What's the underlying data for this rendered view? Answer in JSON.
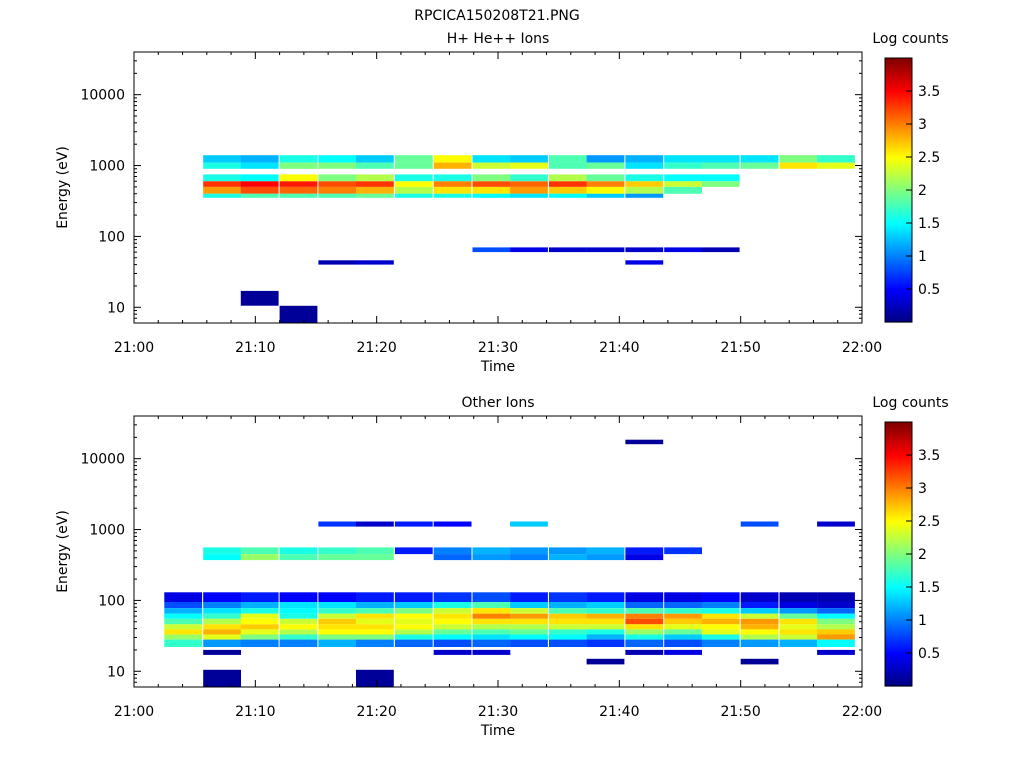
{
  "figure": {
    "title": "RPCICA150208T21.PNG"
  },
  "colormap": [
    "#00007f",
    "#0000ff",
    "#007fff",
    "#00ffff",
    "#7fff7f",
    "#ffff00",
    "#ff7f00",
    "#ff0000",
    "#7f0000"
  ],
  "chart_data": [
    {
      "type": "heatmap",
      "title": "H+ He++ Ions",
      "xlabel": "Time",
      "ylabel": "Energy (eV)",
      "y_scale": "log",
      "xlim": [
        "21:00",
        "22:00"
      ],
      "ylim": [
        6,
        40000
      ],
      "x_ticks": [
        "21:00",
        "21:10",
        "21:20",
        "21:30",
        "21:40",
        "21:50",
        "22:00"
      ],
      "y_ticks": [
        "10",
        "100",
        "1000",
        "10000"
      ],
      "colorbar": {
        "label": "Log counts",
        "range": [
          0,
          4
        ],
        "ticks": [
          "0.5",
          "1",
          "1.5",
          "2",
          "2.5",
          "3",
          "3.5"
        ]
      },
      "time_bins_start_min": [
        2.5,
        5.7,
        8.8,
        12.0,
        15.2,
        18.3,
        21.5,
        24.7,
        27.9,
        31.0,
        34.2,
        37.3,
        40.5,
        43.7,
        46.8,
        50.0,
        53.2,
        56.3
      ],
      "bin_width_min": 3.2,
      "bands": [
        {
          "e": [
            1100,
            1400
          ],
          "values": [
            null,
            1.3,
            1.2,
            1.6,
            1.5,
            1.3,
            1.9,
            2.5,
            1.4,
            1.3,
            1.8,
            1.1,
            1.2,
            1.4,
            1.4,
            1.4,
            2.0,
            1.7
          ]
        },
        {
          "e": [
            900,
            1100
          ],
          "values": [
            null,
            1.6,
            1.4,
            2.0,
            2.0,
            1.8,
            1.9,
            2.8,
            2.3,
            2.4,
            1.8,
            1.9,
            1.4,
            1.7,
            1.8,
            1.9,
            2.6,
            2.4
          ]
        },
        {
          "e": [
            600,
            750
          ],
          "values": [
            null,
            1.6,
            1.5,
            2.5,
            2.0,
            2.2,
            1.6,
            1.6,
            2.0,
            1.7,
            2.2,
            1.9,
            1.6,
            1.5,
            1.5,
            null,
            null,
            null
          ]
        },
        {
          "e": [
            500,
            600
          ],
          "values": [
            null,
            3.3,
            3.5,
            3.4,
            3.2,
            3.3,
            2.5,
            3.0,
            3.2,
            3.1,
            3.3,
            3.0,
            2.7,
            2.3,
            2.0,
            null,
            null,
            null
          ]
        },
        {
          "e": [
            400,
            500
          ],
          "values": [
            null,
            2.9,
            3.2,
            3.1,
            3.0,
            2.8,
            2.2,
            2.6,
            2.6,
            2.9,
            2.7,
            2.5,
            2.2,
            1.8,
            null,
            null,
            null,
            null
          ]
        },
        {
          "e": [
            350,
            400
          ],
          "values": [
            null,
            1.6,
            1.8,
            1.8,
            1.8,
            1.9,
            1.6,
            1.6,
            1.5,
            1.4,
            1.5,
            1.3,
            1.1,
            null,
            null,
            null,
            null,
            null
          ]
        },
        {
          "e": [
            40,
            46
          ],
          "values": [
            null,
            null,
            null,
            null,
            0.2,
            0.3,
            null,
            null,
            null,
            null,
            null,
            null,
            0.4,
            null,
            null,
            null,
            null,
            null
          ]
        },
        {
          "e": [
            60,
            70
          ],
          "values": [
            null,
            null,
            null,
            null,
            null,
            null,
            null,
            null,
            0.8,
            0.4,
            0.3,
            0.3,
            0.3,
            0.4,
            0.2,
            null,
            null,
            null
          ]
        },
        {
          "e": [
            10.5,
            17
          ],
          "values": [
            null,
            null,
            0.1,
            null,
            null,
            null,
            null,
            null,
            null,
            null,
            null,
            null,
            null,
            null,
            null,
            null,
            null,
            null
          ]
        },
        {
          "e": [
            6,
            10.5
          ],
          "values": [
            null,
            null,
            null,
            0.1,
            null,
            null,
            null,
            null,
            null,
            null,
            null,
            null,
            null,
            null,
            null,
            null,
            null,
            null
          ]
        }
      ]
    },
    {
      "type": "heatmap",
      "title": "Other Ions",
      "xlabel": "Time",
      "ylabel": "Energy (eV)",
      "y_scale": "log",
      "xlim": [
        "21:00",
        "22:00"
      ],
      "ylim": [
        6,
        40000
      ],
      "x_ticks": [
        "21:00",
        "21:10",
        "21:20",
        "21:30",
        "21:40",
        "21:50",
        "22:00"
      ],
      "y_ticks": [
        "10",
        "100",
        "1000",
        "10000"
      ],
      "colorbar": {
        "label": "Log counts",
        "range": [
          0,
          4
        ],
        "ticks": [
          "0.5",
          "1",
          "1.5",
          "2",
          "2.5",
          "3",
          "3.5"
        ]
      },
      "time_bins_start_min": [
        2.5,
        5.7,
        8.8,
        12.0,
        15.2,
        18.3,
        21.5,
        24.7,
        27.9,
        31.0,
        34.2,
        37.3,
        40.5,
        43.7,
        46.8,
        50.0,
        53.2,
        56.3
      ],
      "bin_width_min": 3.2,
      "bands": [
        {
          "e": [
            1100,
            1300
          ],
          "values": [
            null,
            null,
            null,
            null,
            0.7,
            0.3,
            0.6,
            0.5,
            null,
            1.3,
            null,
            null,
            null,
            null,
            null,
            0.8,
            null,
            0.3
          ]
        },
        {
          "e": [
            450,
            560
          ],
          "values": [
            null,
            1.6,
            1.8,
            1.6,
            1.7,
            1.8,
            0.6,
            1.0,
            1.2,
            1.1,
            1.1,
            1.2,
            0.6,
            0.7,
            null,
            null,
            null,
            null
          ]
        },
        {
          "e": [
            370,
            450
          ],
          "values": [
            null,
            1.5,
            2.1,
            1.8,
            1.9,
            1.9,
            null,
            0.9,
            1.1,
            1.0,
            1.2,
            1.1,
            0.4,
            null,
            null,
            null,
            null,
            null
          ]
        },
        {
          "e": [
            95,
            130
          ],
          "values": [
            0.4,
            0.5,
            0.6,
            0.5,
            0.5,
            0.6,
            0.6,
            0.7,
            0.8,
            0.6,
            0.7,
            0.6,
            0.4,
            0.4,
            0.5,
            0.3,
            0.2,
            0.2
          ]
        },
        {
          "e": [
            78,
            95
          ],
          "values": [
            0.8,
            1.0,
            1.2,
            1.4,
            1.4,
            1.2,
            1.3,
            1.6,
            1.8,
            1.3,
            1.2,
            1.3,
            0.9,
            0.9,
            1.0,
            0.6,
            0.4,
            0.3
          ]
        },
        {
          "e": [
            65,
            78
          ],
          "values": [
            1.2,
            1.4,
            1.6,
            1.5,
            1.7,
            1.8,
            2.0,
            2.3,
            2.6,
            2.3,
            1.8,
            1.7,
            1.8,
            1.7,
            1.6,
            1.3,
            1.1,
            0.9
          ]
        },
        {
          "e": [
            55,
            65
          ],
          "values": [
            1.5,
            1.7,
            2.4,
            1.6,
            2.3,
            2.6,
            2.5,
            2.6,
            3.0,
            2.9,
            2.7,
            2.8,
            3.0,
            2.9,
            2.6,
            2.3,
            1.9,
            1.5
          ]
        },
        {
          "e": [
            46,
            55
          ],
          "values": [
            1.8,
            2.2,
            2.5,
            2.3,
            2.7,
            2.4,
            2.4,
            2.5,
            2.6,
            2.6,
            2.6,
            2.6,
            3.2,
            2.7,
            2.8,
            2.9,
            2.6,
            2.0
          ]
        },
        {
          "e": [
            39,
            46
          ],
          "values": [
            2.3,
            2.6,
            2.7,
            2.5,
            2.6,
            2.6,
            2.5,
            2.3,
            2.2,
            2.2,
            2.3,
            2.3,
            2.6,
            2.4,
            2.5,
            2.8,
            2.4,
            2.2
          ]
        },
        {
          "e": [
            33,
            39
          ],
          "values": [
            2.6,
            2.8,
            2.4,
            2.2,
            2.5,
            2.5,
            2.2,
            1.9,
            1.8,
            1.9,
            1.7,
            1.6,
            2.1,
            1.9,
            2.4,
            2.5,
            2.6,
            2.7
          ]
        },
        {
          "e": [
            28,
            33
          ],
          "values": [
            2.1,
            2.4,
            2.0,
            1.7,
            2.0,
            2.0,
            1.6,
            1.5,
            1.4,
            1.5,
            1.5,
            1.2,
            1.6,
            1.3,
            1.6,
            2.2,
            2.3,
            2.9
          ]
        },
        {
          "e": [
            22,
            28
          ],
          "values": [
            1.7,
            1.1,
            1.0,
            1.0,
            1.2,
            1.0,
            0.9,
            0.8,
            0.9,
            0.8,
            0.8,
            0.7,
            0.9,
            0.8,
            1.0,
            1.1,
            1.2,
            1.5
          ]
        },
        {
          "e": [
            17,
            20
          ],
          "values": [
            null,
            0.1,
            null,
            null,
            null,
            null,
            null,
            0.3,
            0.3,
            null,
            null,
            null,
            0.2,
            0.4,
            null,
            null,
            null,
            0.3
          ]
        },
        {
          "e": [
            12.5,
            15
          ],
          "values": [
            null,
            null,
            null,
            null,
            null,
            null,
            null,
            null,
            null,
            null,
            null,
            0.1,
            null,
            null,
            null,
            0.1,
            null,
            null
          ]
        },
        {
          "e": [
            6,
            10.5
          ],
          "values": [
            null,
            0.1,
            null,
            null,
            null,
            0.1,
            null,
            null,
            null,
            null,
            null,
            null,
            null,
            null,
            null,
            null,
            null,
            null
          ]
        },
        {
          "e": [
            16000,
            18500
          ],
          "values": [
            null,
            null,
            null,
            null,
            null,
            null,
            null,
            null,
            null,
            null,
            null,
            null,
            0.1,
            null,
            null,
            null,
            null,
            null
          ]
        }
      ]
    }
  ]
}
